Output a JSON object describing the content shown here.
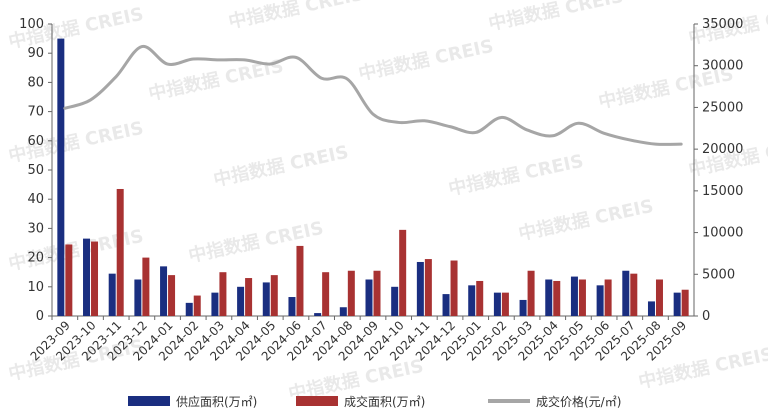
{
  "chart_data": {
    "type": "bar",
    "categories": [
      "2023-09",
      "2023-10",
      "2023-11",
      "2023-12",
      "2024-01",
      "2024-02",
      "2024-03",
      "2024-04",
      "2024-05",
      "2024-06",
      "2024-07",
      "2024-08",
      "2024-09",
      "2024-10",
      "2024-11",
      "2024-12",
      "2025-01",
      "2025-02",
      "2025-03",
      "2025-04",
      "2025-05",
      "2025-06",
      "2025-07",
      "2025-08",
      "2025-09"
    ],
    "series": [
      {
        "name": "供应面积(万㎡)",
        "type": "bar",
        "axis": "left",
        "color": "#1a2e80",
        "values": [
          95,
          26.5,
          14.5,
          12.5,
          17,
          4.5,
          8,
          10,
          11.5,
          6.5,
          1,
          3,
          12.5,
          10,
          18.5,
          7.5,
          10.5,
          8,
          5.5,
          12.5,
          13.5,
          10.5,
          15.5,
          5,
          8
        ]
      },
      {
        "name": "成交面积(万㎡)",
        "type": "bar",
        "axis": "left",
        "color": "#a83232",
        "values": [
          24.5,
          25.5,
          43.5,
          20,
          14,
          7,
          15,
          13,
          14,
          24,
          15,
          15.5,
          15.5,
          29.5,
          19.5,
          19,
          12,
          8,
          15.5,
          12,
          12.5,
          12.5,
          14.5,
          12.5,
          9
        ]
      },
      {
        "name": "成交价格(元/㎡)",
        "type": "line",
        "axis": "right",
        "color": "#a6a6a6",
        "values": [
          24900,
          25900,
          28700,
          32300,
          30200,
          30800,
          30700,
          30700,
          30200,
          31000,
          28500,
          28400,
          24200,
          23200,
          23400,
          22700,
          22000,
          23800,
          22300,
          21600,
          23100,
          21900,
          21100,
          20600,
          20600
        ]
      }
    ],
    "y_left": {
      "min": 0,
      "max": 100,
      "ticks": [
        "0",
        "10",
        "20",
        "30",
        "40",
        "50",
        "60",
        "70",
        "80",
        "90",
        "100"
      ]
    },
    "y_right": {
      "min": 0,
      "max": 35000,
      "ticks": [
        "0",
        "5000",
        "10000",
        "15000",
        "20000",
        "25000",
        "30000",
        "35000"
      ]
    },
    "legend_position": "bottom-center",
    "grid": false
  },
  "watermark": "中指数据 CREIS"
}
